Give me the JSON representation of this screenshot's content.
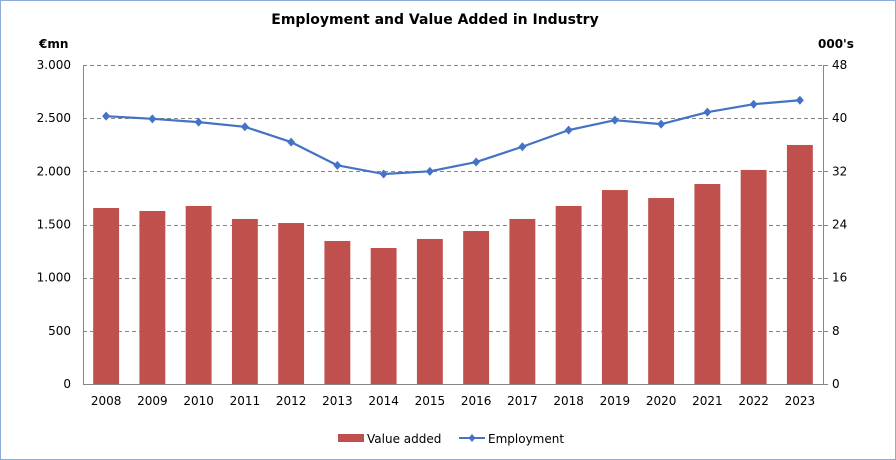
{
  "chart_data": {
    "type": "bar",
    "title": "Employment and Value Added in Industry",
    "categories": [
      "2008",
      "2009",
      "2010",
      "2011",
      "2012",
      "2013",
      "2014",
      "2015",
      "2016",
      "2017",
      "2018",
      "2019",
      "2020",
      "2021",
      "2022",
      "2023"
    ],
    "series": [
      {
        "name": "Value added",
        "type": "bar",
        "axis": "left",
        "color": "#c0504d",
        "values": [
          1655,
          1627,
          1674,
          1552,
          1514,
          1345,
          1279,
          1364,
          1439,
          1552,
          1674,
          1824,
          1749,
          1881,
          2013,
          2248
        ]
      },
      {
        "name": "Employment",
        "type": "line",
        "axis": "right",
        "color": "#4472c4",
        "marker": "diamond",
        "values": [
          40.3,
          39.9,
          39.4,
          38.7,
          36.4,
          32.9,
          31.6,
          32.0,
          33.4,
          35.7,
          38.2,
          39.7,
          39.1,
          40.9,
          42.1,
          42.7
        ]
      }
    ],
    "y_left": {
      "label": "€mn",
      "range": [
        0,
        3000
      ],
      "ticks": [
        0,
        500,
        1000,
        1500,
        2000,
        2500,
        3000
      ],
      "tick_labels": [
        "0",
        "500",
        "1.000",
        "1.500",
        "2.000",
        "2.500",
        "3.000"
      ]
    },
    "y_right": {
      "label": "000's",
      "range": [
        0,
        48
      ],
      "ticks": [
        0,
        8,
        16,
        24,
        32,
        40,
        48
      ],
      "tick_labels": [
        "0",
        "8",
        "16",
        "24",
        "32",
        "40",
        "48"
      ]
    },
    "grid": "horizontal-dashed",
    "legend": "bottom-center"
  }
}
